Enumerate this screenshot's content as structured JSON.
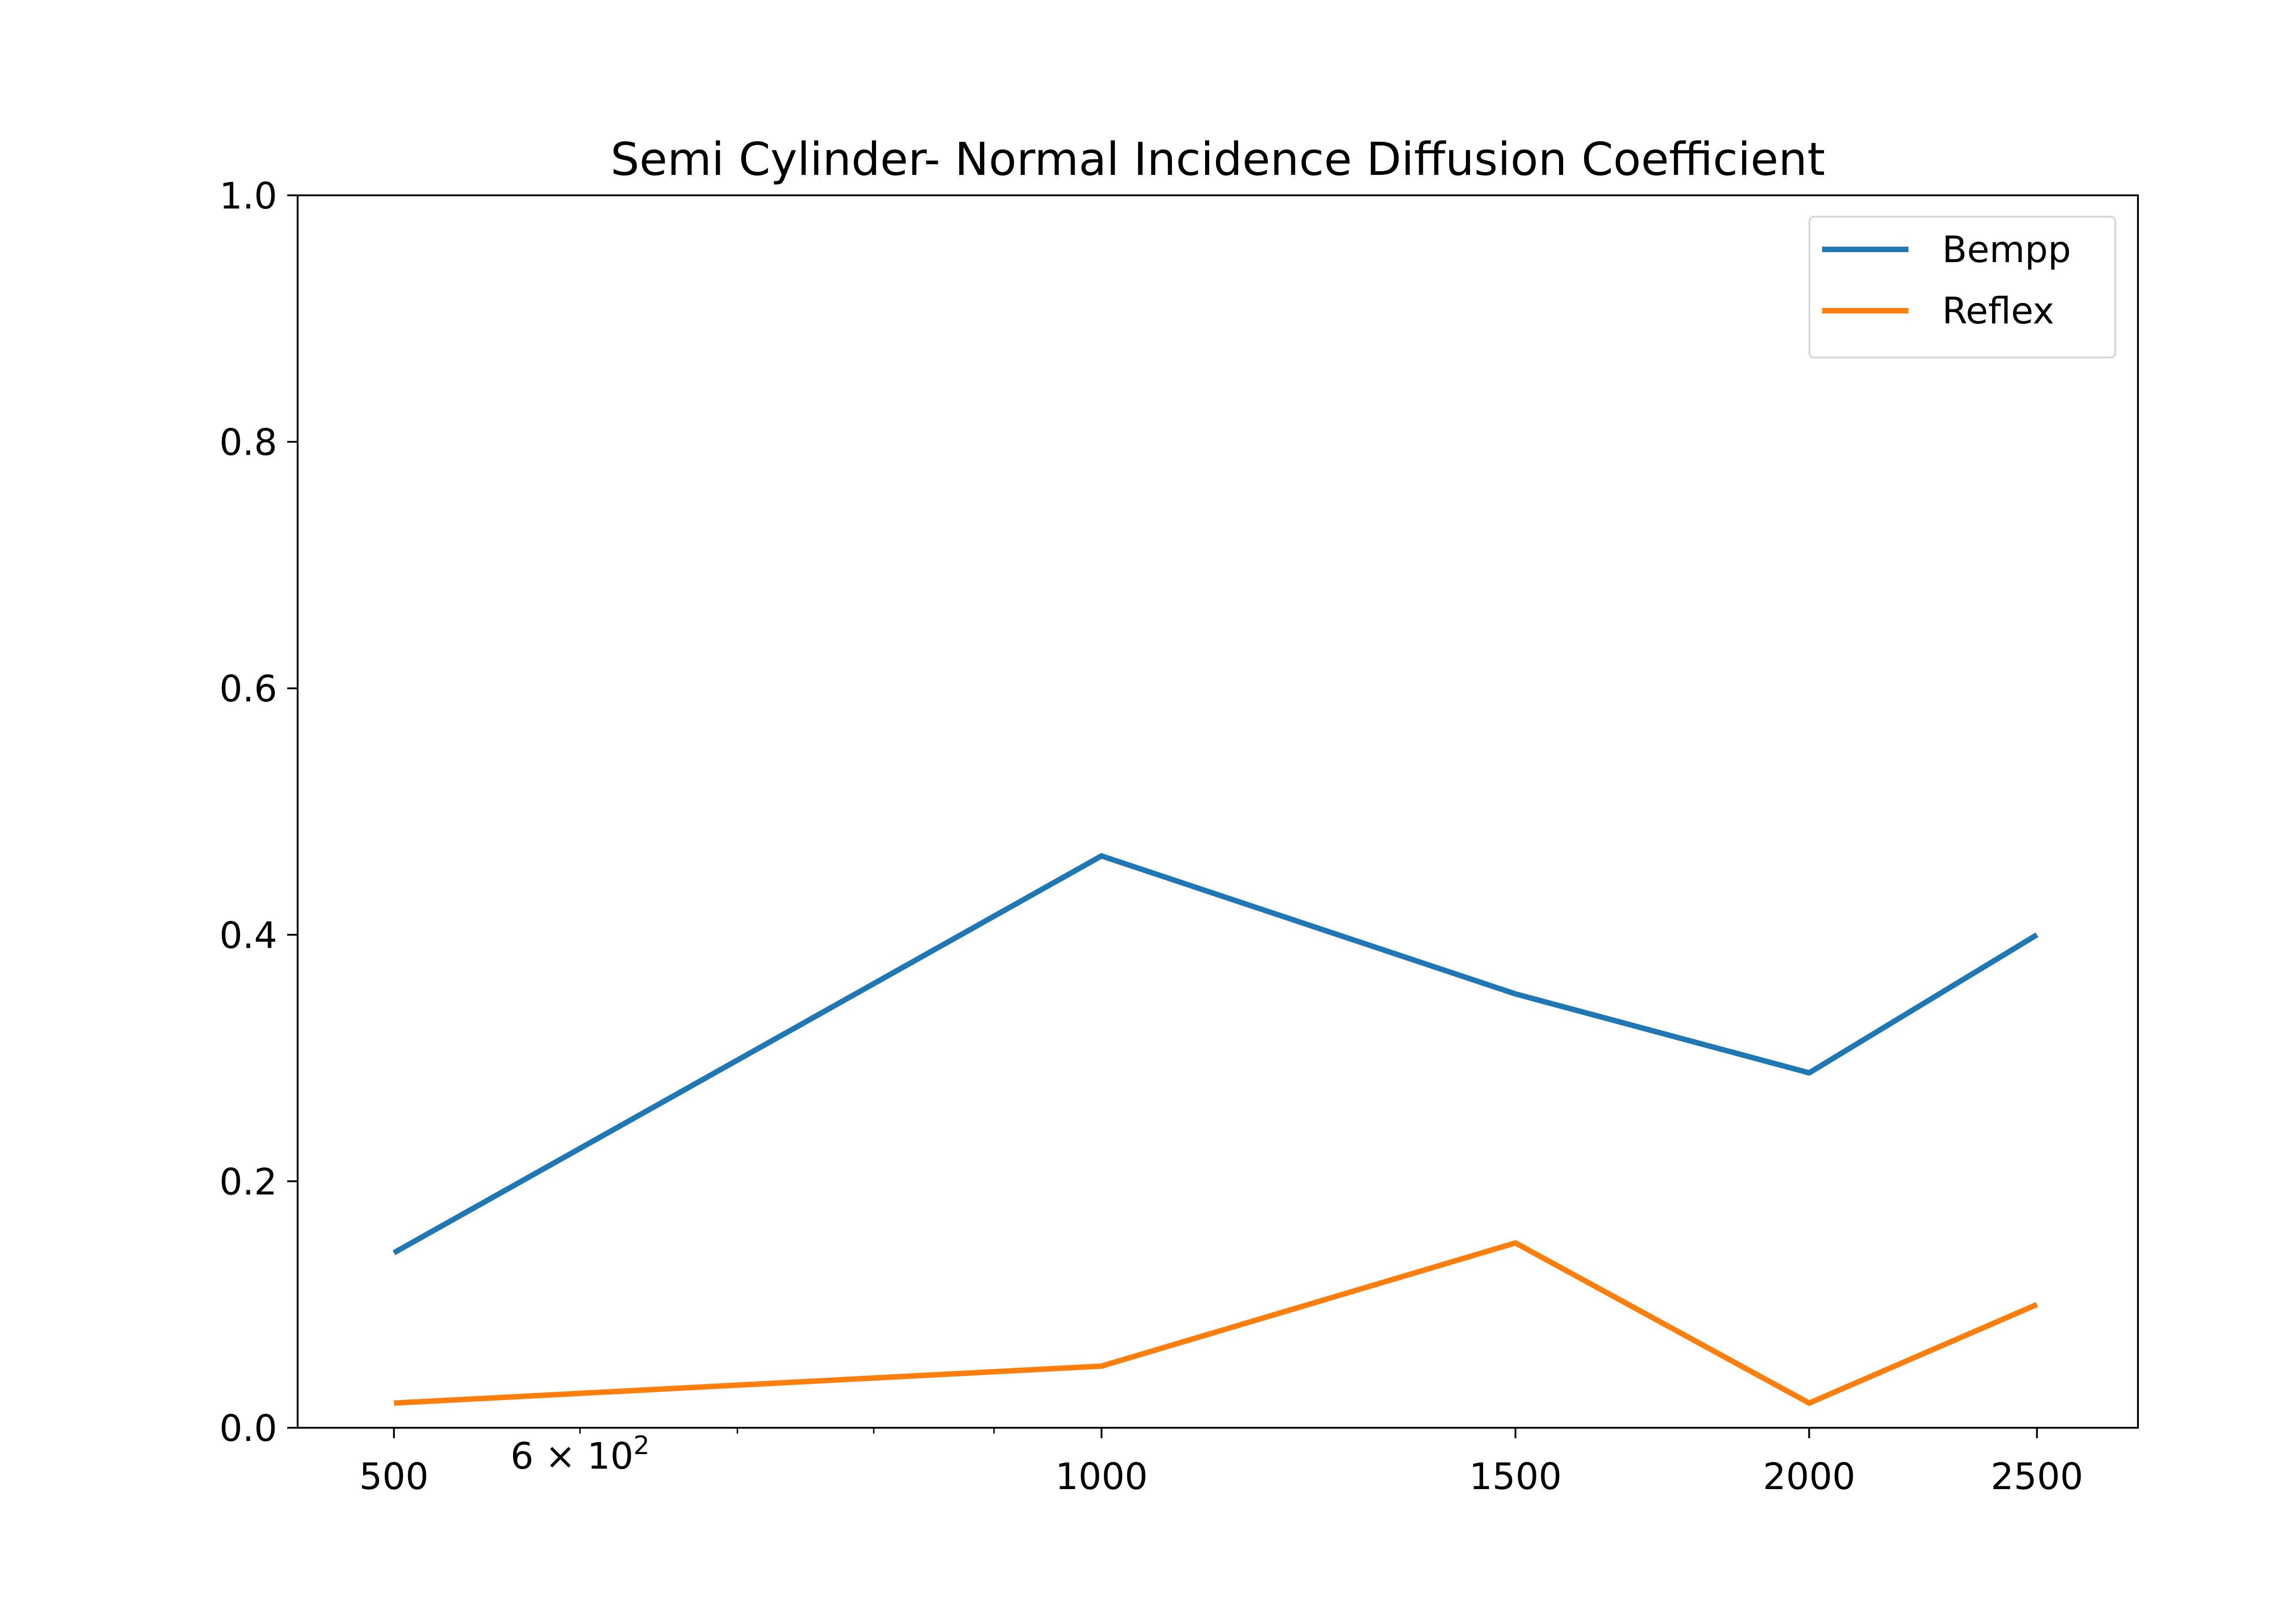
{
  "chart_data": {
    "type": "line",
    "title": "Semi Cylinder- Normal Incidence Diffusion Coefficient",
    "xlabel": "",
    "ylabel": "",
    "x_scale": "log",
    "x": [
      500,
      1000,
      1500,
      2000,
      2500
    ],
    "xlim": [
      455,
      2760
    ],
    "ylim": [
      0.0,
      1.0
    ],
    "x_ticks": [
      500,
      1000,
      1500,
      2000,
      2500
    ],
    "x_tick_labels": [
      "500",
      "1000",
      "1500",
      "2000",
      "2500"
    ],
    "x_minor_ticks": [
      600,
      700,
      800,
      900
    ],
    "x_minor_label": {
      "value": 600,
      "base": "6",
      "times": "×",
      "power": "10",
      "exponent": "2"
    },
    "y_ticks": [
      0.0,
      0.2,
      0.4,
      0.6,
      0.8,
      1.0
    ],
    "y_tick_labels": [
      "0.0",
      "0.2",
      "0.4",
      "0.6",
      "0.8",
      "1.0"
    ],
    "grid": false,
    "legend_position": "top-right",
    "series": [
      {
        "name": "Bempp",
        "color": "#1f77b4",
        "values": [
          0.142,
          0.464,
          0.352,
          0.288,
          0.4
        ]
      },
      {
        "name": "Reflex",
        "color": "#ff7f0e",
        "values": [
          0.02,
          0.05,
          0.15,
          0.02,
          0.1
        ]
      }
    ]
  }
}
